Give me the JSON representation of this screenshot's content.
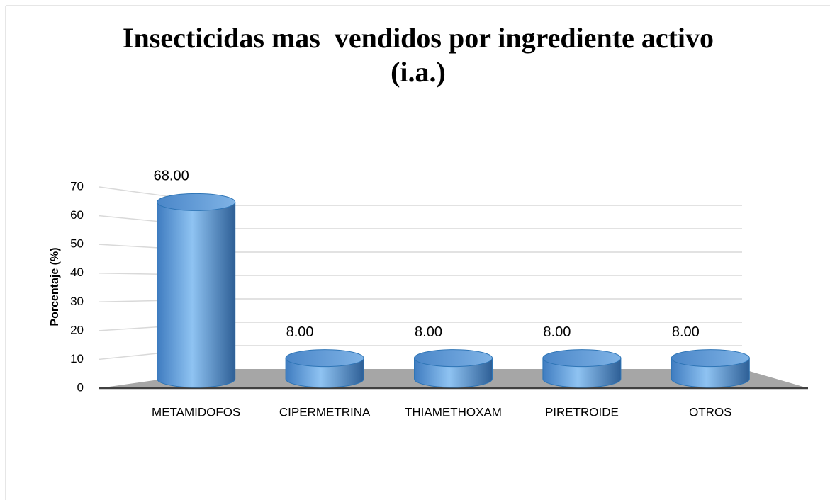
{
  "chart_data": {
    "type": "bar",
    "title": "Insecticidas mas  vendidos por ingrediente activo (i.a.)",
    "y_label": "Porcentaje (%)",
    "categories": [
      "METAMIDOFOS",
      "CIPERMETRINA",
      "THIAMETHOXAM",
      "PIRETROIDE",
      "OTROS"
    ],
    "values": [
      68,
      8,
      8,
      8,
      8
    ],
    "value_labels": [
      "68.00",
      "8.00",
      "8.00",
      "8.00",
      "8.00"
    ],
    "color": "#5b9bd5",
    "ylim": [
      0,
      70
    ],
    "yticks": [
      0,
      10,
      20,
      30,
      40,
      50,
      60,
      70
    ],
    "grid": true
  }
}
